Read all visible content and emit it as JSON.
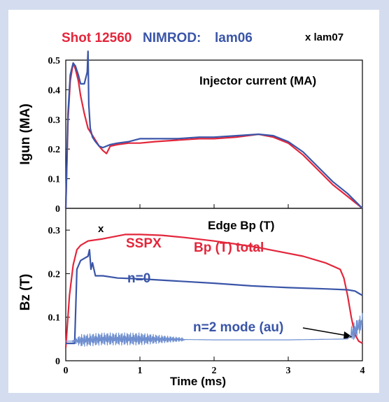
{
  "legend": {
    "shot": "Shot 12560",
    "nimrod": "NIMROD:",
    "lam06": "lam06",
    "lam07": "x lam07"
  },
  "colors": {
    "red": "#e3263b",
    "blue": "#3a55a8",
    "lightblue": "#6f8fd0",
    "background": "#d4ddef"
  },
  "chart_data": [
    {
      "type": "line",
      "title": "Injector current (MA)",
      "ylabel": "Igun (MA)",
      "xlim": [
        0,
        4
      ],
      "ylim": [
        0,
        0.5
      ],
      "yticks": [
        "0",
        "0.1",
        "0.2",
        "0.3",
        "0.4",
        "0.5"
      ],
      "series": [
        {
          "name": "Shot 12560",
          "color": "#e3263b",
          "x": [
            0.0,
            0.03,
            0.06,
            0.1,
            0.13,
            0.17,
            0.2,
            0.25,
            0.3,
            0.35,
            0.4,
            0.45,
            0.5,
            0.55,
            0.6,
            0.7,
            0.85,
            1.0,
            1.2,
            1.5,
            1.8,
            2.0,
            2.3,
            2.6,
            2.8,
            3.0,
            3.2,
            3.4,
            3.6,
            3.8,
            4.0
          ],
          "y": [
            0.0,
            0.3,
            0.43,
            0.49,
            0.47,
            0.43,
            0.38,
            0.32,
            0.27,
            0.25,
            0.23,
            0.21,
            0.195,
            0.185,
            0.21,
            0.215,
            0.22,
            0.22,
            0.225,
            0.23,
            0.235,
            0.235,
            0.24,
            0.25,
            0.24,
            0.22,
            0.18,
            0.13,
            0.08,
            0.04,
            0.0
          ]
        },
        {
          "name": "lam06",
          "color": "#3a55a8",
          "x": [
            0.0,
            0.03,
            0.06,
            0.1,
            0.13,
            0.17,
            0.2,
            0.25,
            0.29,
            0.3,
            0.31,
            0.33,
            0.36,
            0.4,
            0.45,
            0.5,
            0.6,
            0.7,
            0.85,
            1.0,
            1.2,
            1.5,
            1.8,
            2.0,
            2.3,
            2.6,
            2.8,
            3.0,
            3.2,
            3.4,
            3.6,
            3.8,
            4.0
          ],
          "y": [
            0.0,
            0.32,
            0.45,
            0.49,
            0.48,
            0.45,
            0.42,
            0.42,
            0.46,
            0.53,
            0.35,
            0.27,
            0.24,
            0.225,
            0.21,
            0.205,
            0.215,
            0.22,
            0.225,
            0.235,
            0.235,
            0.235,
            0.24,
            0.24,
            0.245,
            0.25,
            0.245,
            0.225,
            0.19,
            0.14,
            0.09,
            0.05,
            0.0
          ]
        }
      ]
    },
    {
      "type": "line",
      "title": "Edge Bp (T)",
      "xlabel": "Time (ms)",
      "ylabel": "Bz (T)",
      "xlim": [
        0,
        4
      ],
      "ylim": [
        0,
        0.35
      ],
      "xticks": [
        "0",
        "1",
        "2",
        "3",
        "4"
      ],
      "yticks": [
        "0",
        "0.1",
        "0.2",
        "0.3"
      ],
      "annotations": {
        "x_marker": "x",
        "sspx": "SSPX",
        "bp_total": "Bp (T) total",
        "n0": "n=0",
        "n2": "n=2 mode (au)"
      },
      "series": [
        {
          "name": "SSPX Bp (T) total",
          "color": "#e3263b",
          "x": [
            0.0,
            0.05,
            0.1,
            0.15,
            0.2,
            0.3,
            0.5,
            0.8,
            1.0,
            1.3,
            1.6,
            2.0,
            2.3,
            2.6,
            2.9,
            3.2,
            3.5,
            3.7,
            3.75,
            3.8,
            3.85,
            3.9,
            3.95,
            4.0
          ],
          "y": [
            0.03,
            0.15,
            0.22,
            0.255,
            0.265,
            0.275,
            0.28,
            0.29,
            0.29,
            0.288,
            0.283,
            0.275,
            0.268,
            0.26,
            0.25,
            0.24,
            0.225,
            0.21,
            0.19,
            0.15,
            0.1,
            0.06,
            0.045,
            0.04
          ]
        },
        {
          "name": "n=0",
          "color": "#3a55a8",
          "x": [
            0.0,
            0.12,
            0.14,
            0.15,
            0.2,
            0.25,
            0.3,
            0.32,
            0.34,
            0.36,
            0.4,
            0.5,
            0.7,
            1.0,
            1.5,
            2.0,
            2.5,
            3.0,
            3.5,
            3.8,
            3.9,
            3.95,
            4.0
          ],
          "y": [
            0.04,
            0.04,
            0.15,
            0.21,
            0.23,
            0.235,
            0.24,
            0.255,
            0.21,
            0.225,
            0.195,
            0.195,
            0.19,
            0.188,
            0.183,
            0.178,
            0.172,
            0.168,
            0.165,
            0.163,
            0.16,
            0.155,
            0.15
          ]
        },
        {
          "name": "n=2 mode (au)",
          "color": "#6f8fd0",
          "oscillating": true,
          "x": [
            0.0,
            0.1,
            0.5,
            1.0,
            2.0,
            3.0,
            3.8,
            4.0
          ],
          "y": [
            0.045,
            0.045,
            0.05,
            0.05,
            0.048,
            0.048,
            0.05,
            0.09
          ]
        }
      ]
    }
  ]
}
